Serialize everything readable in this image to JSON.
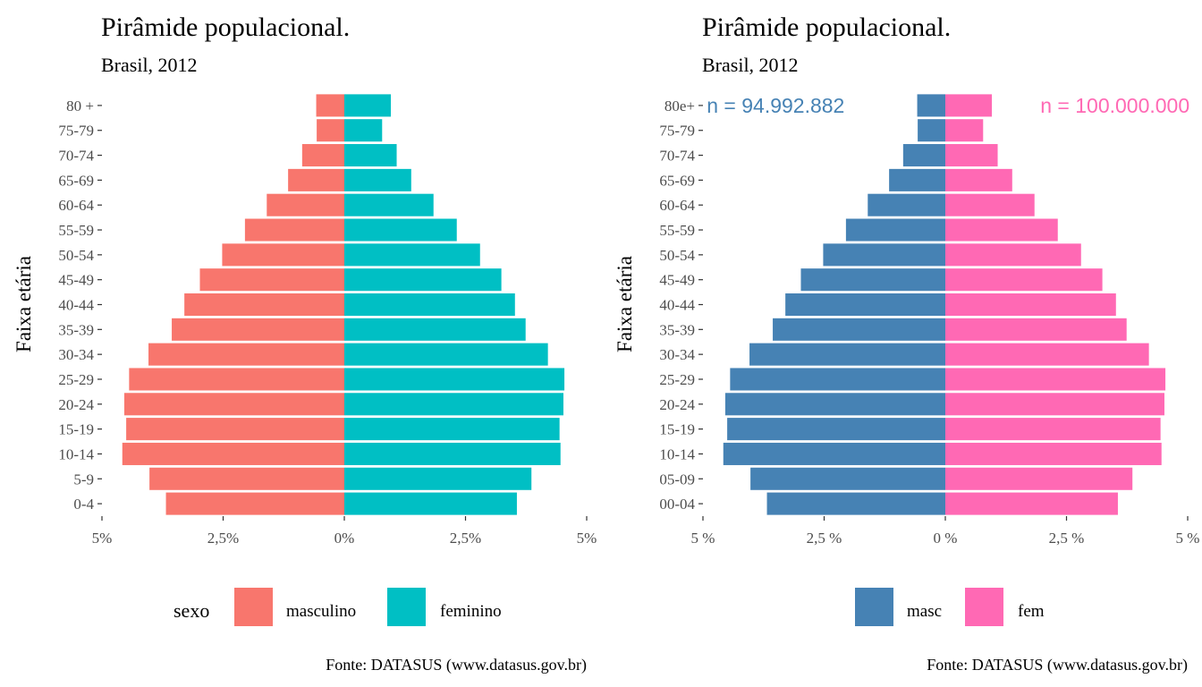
{
  "chart_data": [
    {
      "type": "bar",
      "orientation": "horizontal-pyramid",
      "title": "Pirâmide populacional.",
      "subtitle": "Brasil, 2012",
      "ylabel": "Faixa etária",
      "xlabel": "",
      "xlim": [
        -5,
        5
      ],
      "x_ticks": [
        -5,
        -2.5,
        0,
        2.5,
        5
      ],
      "x_tick_labels": [
        "5%",
        "2,5%",
        "0%",
        "2,5%",
        "5%"
      ],
      "categories": [
        "0-4",
        "5-9",
        "10-14",
        "15-19",
        "20-24",
        "25-29",
        "30-34",
        "35-39",
        "40-44",
        "45-49",
        "50-54",
        "55-59",
        "60-64",
        "65-69",
        "70-74",
        "75-79",
        "80 +"
      ],
      "series": [
        {
          "name": "masculino",
          "color": "#F8766D",
          "values": [
            3.68,
            4.02,
            4.58,
            4.5,
            4.54,
            4.44,
            4.04,
            3.56,
            3.3,
            2.98,
            2.52,
            2.05,
            1.6,
            1.16,
            0.87,
            0.57,
            0.58
          ]
        },
        {
          "name": "feminino",
          "color": "#00BFC4",
          "values": [
            3.56,
            3.86,
            4.46,
            4.44,
            4.52,
            4.54,
            4.2,
            3.74,
            3.52,
            3.24,
            2.8,
            2.32,
            1.84,
            1.38,
            1.08,
            0.78,
            0.96
          ]
        }
      ],
      "legend": {
        "title": "sexo",
        "position": "bottom"
      },
      "caption": "Fonte: DATASUS (www.datasus.gov.br)",
      "grid": false
    },
    {
      "type": "bar",
      "orientation": "horizontal-pyramid",
      "title": "Pirâmide populacional.",
      "subtitle": "Brasil, 2012",
      "ylabel": "Faixa etária",
      "xlabel": "",
      "xlim": [
        -5,
        5
      ],
      "x_ticks": [
        -5,
        -2.5,
        0,
        2.5,
        5
      ],
      "x_tick_labels": [
        "5 %",
        "2,5 %",
        "0 %",
        "2,5 %",
        "5 %"
      ],
      "categories": [
        "00-04",
        "05-09",
        "10-14",
        "15-19",
        "20-24",
        "25-29",
        "30-34",
        "35-39",
        "40-44",
        "45-49",
        "50-54",
        "55-59",
        "60-64",
        "65-69",
        "70-74",
        "75-79",
        "80e+"
      ],
      "series": [
        {
          "name": "masc",
          "color": "#4682B4",
          "values": [
            3.68,
            4.02,
            4.58,
            4.5,
            4.54,
            4.44,
            4.04,
            3.56,
            3.3,
            2.98,
            2.52,
            2.05,
            1.6,
            1.16,
            0.87,
            0.57,
            0.58
          ]
        },
        {
          "name": "fem",
          "color": "#FF69B4",
          "values": [
            3.56,
            3.86,
            4.46,
            4.44,
            4.52,
            4.54,
            4.2,
            3.74,
            3.52,
            3.24,
            2.8,
            2.32,
            1.84,
            1.38,
            1.08,
            0.78,
            0.96
          ]
        }
      ],
      "annotations": [
        {
          "text": "n = 94.992.882",
          "color": "#4682B4",
          "x": -3.5,
          "category": "80e+"
        },
        {
          "text": "n = 100.000.000",
          "color": "#FF69B4",
          "x": 3.5,
          "category": "80e+"
        }
      ],
      "legend": {
        "title": "",
        "position": "bottom"
      },
      "caption": "Fonte: DATASUS (www.datasus.gov.br)",
      "grid": false
    }
  ]
}
